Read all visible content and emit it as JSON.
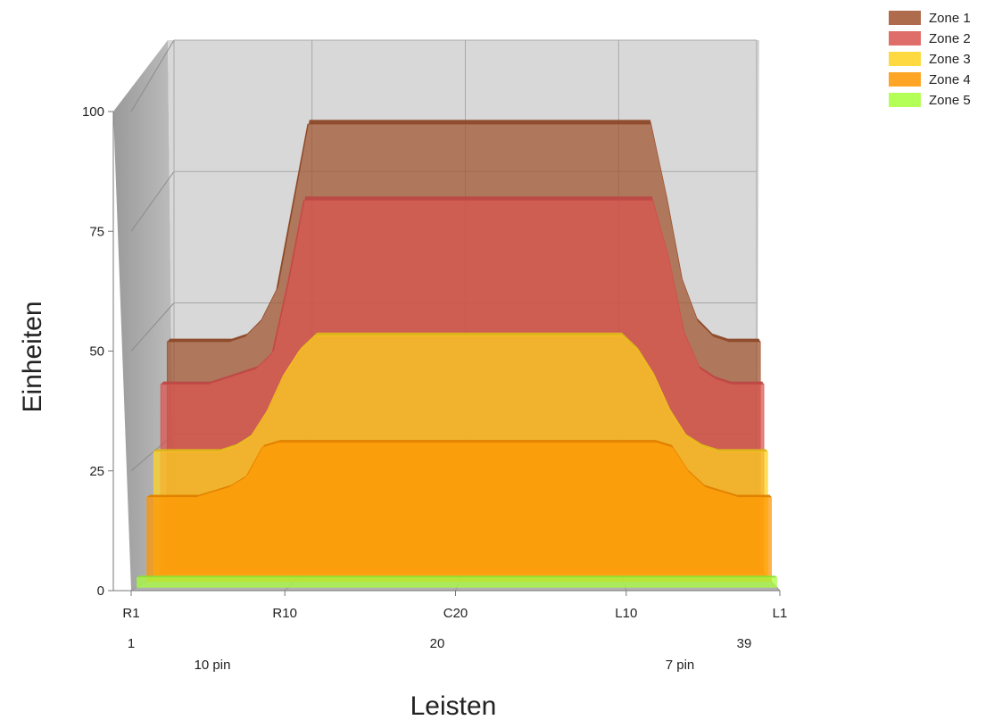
{
  "chart_data": {
    "type": "area",
    "view": "3d",
    "xlabel": "Leisten",
    "ylabel": "Einheiten",
    "ylim": [
      0,
      100
    ],
    "y_ticks": [
      "0",
      "25",
      "50",
      "75",
      "100"
    ],
    "x_ticks": [
      "R1",
      "R10",
      "C20",
      "L10",
      "L1"
    ],
    "x_sub_labels": [
      "1",
      "20",
      "39"
    ],
    "x_notes": [
      "10 pin",
      "7 pin"
    ],
    "legend_position": "top-right",
    "x": [
      1,
      2,
      3,
      4,
      5,
      6,
      7,
      8,
      9,
      10,
      11,
      12,
      13,
      14,
      15,
      16,
      17,
      18,
      19,
      20,
      21,
      22,
      23,
      24,
      25,
      26,
      27,
      28,
      29,
      30,
      31,
      32,
      33,
      34,
      35,
      36,
      37,
      38,
      39
    ],
    "series": [
      {
        "name": "Zone 1",
        "color": "#A0522D",
        "values": [
          44,
          44,
          44,
          44,
          44,
          45,
          48,
          54,
          70,
          86,
          86,
          86,
          86,
          86,
          86,
          86,
          86,
          86,
          86,
          86,
          86,
          86,
          86,
          86,
          86,
          86,
          86,
          86,
          86,
          86,
          86,
          86,
          72,
          56,
          48,
          45,
          44,
          44,
          44
        ]
      },
      {
        "name": "Zone 2",
        "color": "#D9534F",
        "values": [
          37,
          37,
          37,
          37,
          38,
          39,
          40,
          43,
          57,
          73,
          73,
          73,
          73,
          73,
          73,
          73,
          73,
          73,
          73,
          73,
          73,
          73,
          73,
          73,
          73,
          73,
          73,
          73,
          73,
          73,
          73,
          73,
          62,
          47,
          40,
          38,
          37,
          37,
          37
        ]
      },
      {
        "name": "Zone 3",
        "color": "#FFD21F",
        "values": [
          25,
          25,
          25,
          25,
          25,
          26,
          28,
          33,
          40,
          45,
          48,
          48,
          48,
          48,
          48,
          48,
          48,
          48,
          48,
          48,
          48,
          48,
          48,
          48,
          48,
          48,
          48,
          48,
          48,
          48,
          45,
          40,
          33,
          28,
          26,
          25,
          25,
          25,
          25
        ]
      },
      {
        "name": "Zone 4",
        "color": "#FF9500",
        "values": [
          17,
          17,
          17,
          17,
          18,
          19,
          21,
          27,
          28,
          28,
          28,
          28,
          28,
          28,
          28,
          28,
          28,
          28,
          28,
          28,
          28,
          28,
          28,
          28,
          28,
          28,
          28,
          28,
          28,
          28,
          28,
          28,
          27,
          22,
          19,
          18,
          17,
          17,
          17
        ]
      },
      {
        "name": "Zone 5",
        "color": "#A6FF3A",
        "values": [
          2,
          2,
          2,
          2,
          2,
          2,
          2,
          2,
          2,
          2,
          2,
          2,
          2,
          2,
          2,
          2,
          2,
          2,
          2,
          2,
          2,
          2,
          2,
          2,
          2,
          2,
          2,
          2,
          2,
          2,
          2,
          2,
          2,
          2,
          2,
          2,
          2,
          2,
          2
        ]
      }
    ]
  }
}
